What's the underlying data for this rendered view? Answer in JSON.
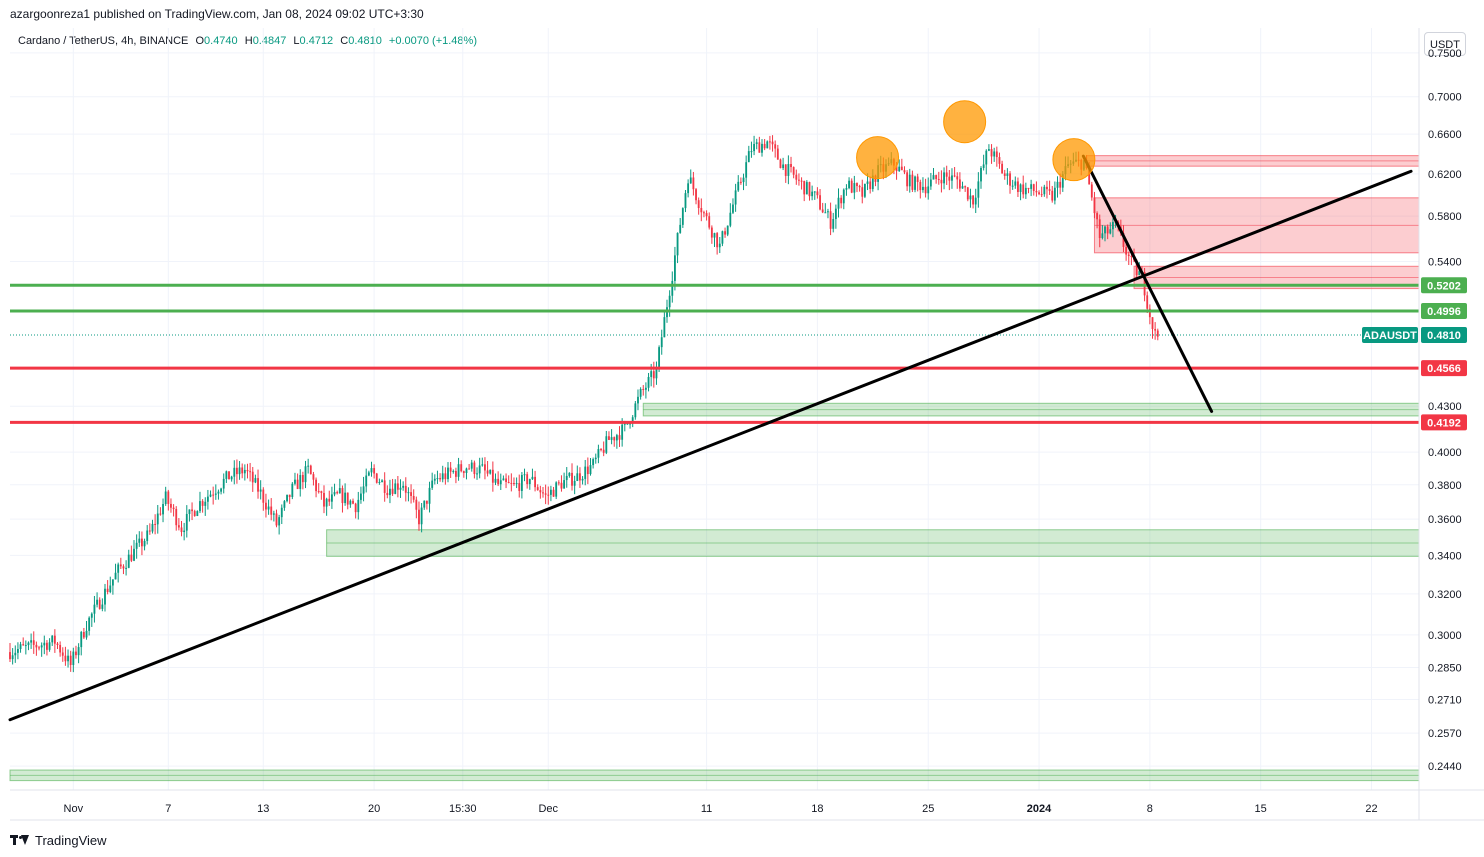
{
  "header": {
    "published": "azargoonreza1 published on TradingView.com, Jan 08, 2024 09:02 UTC+3:30",
    "symbol_line": "Cardano / TetherUS, 4h, BINANCE",
    "open_label": "O",
    "open": "0.4740",
    "high_label": "H",
    "high": "0.4847",
    "low_label": "L",
    "low": "0.4712",
    "close_label": "C",
    "close": "0.4810",
    "change": "+0.0070 (+1.48%)"
  },
  "currency_button": "USDT",
  "footer": {
    "brand": "TradingView"
  },
  "colors": {
    "up": "#089981",
    "down": "#f23645",
    "green_level": "#4caf50",
    "red_level": "#f23645",
    "green_zone": "#4caf50",
    "red_zone": "#f23645",
    "marker": "#ff9800",
    "trend": "#000000"
  },
  "chart_data": {
    "type": "candlestick",
    "title": "Cardano / TetherUS, 4h, BINANCE",
    "scale": "log",
    "ylim": [
      0.235,
      0.78
    ],
    "x_ticks": [
      "Nov",
      "7",
      "13",
      "20",
      "15:30",
      "Dec",
      "11",
      "18",
      "25",
      "2024",
      "8",
      "15",
      "22"
    ],
    "x_tick_days": [
      0,
      6,
      12,
      19,
      24.6,
      30,
      40,
      47,
      54,
      61,
      68,
      75,
      82
    ],
    "x_range_days": [
      -4,
      85
    ],
    "y_ticks": [
      "0.7500",
      "0.7000",
      "0.6600",
      "0.6200",
      "0.5800",
      "0.5400",
      "0.4300",
      "0.4000",
      "0.3800",
      "0.3600",
      "0.3400",
      "0.3200",
      "0.3000",
      "0.2850",
      "0.2710",
      "0.2570",
      "0.2440"
    ],
    "y_tick_values": [
      0.75,
      0.7,
      0.66,
      0.62,
      0.58,
      0.54,
      0.43,
      0.4,
      0.38,
      0.36,
      0.34,
      0.32,
      0.3,
      0.285,
      0.271,
      0.257,
      0.244
    ],
    "price_path": [
      [
        -4,
        0.292
      ],
      [
        -1,
        0.297
      ],
      [
        0,
        0.286
      ],
      [
        1,
        0.305
      ],
      [
        3,
        0.332
      ],
      [
        5,
        0.352
      ],
      [
        6,
        0.372
      ],
      [
        7,
        0.355
      ],
      [
        8,
        0.368
      ],
      [
        10,
        0.385
      ],
      [
        11,
        0.389
      ],
      [
        12,
        0.375
      ],
      [
        13,
        0.357
      ],
      [
        14,
        0.377
      ],
      [
        15,
        0.389
      ],
      [
        16,
        0.368
      ],
      [
        17,
        0.374
      ],
      [
        18,
        0.368
      ],
      [
        19,
        0.388
      ],
      [
        20,
        0.378
      ],
      [
        21,
        0.381
      ],
      [
        22,
        0.36
      ],
      [
        23,
        0.383
      ],
      [
        24,
        0.387
      ],
      [
        25,
        0.391
      ],
      [
        26,
        0.389
      ],
      [
        27,
        0.38
      ],
      [
        28,
        0.379
      ],
      [
        29,
        0.384
      ],
      [
        30,
        0.373
      ],
      [
        31,
        0.381
      ],
      [
        32,
        0.385
      ],
      [
        33,
        0.392
      ],
      [
        34,
        0.408
      ],
      [
        35,
        0.415
      ],
      [
        36,
        0.438
      ],
      [
        37,
        0.455
      ],
      [
        38,
        0.53
      ],
      [
        39,
        0.618
      ],
      [
        40,
        0.582
      ],
      [
        41,
        0.553
      ],
      [
        42,
        0.598
      ],
      [
        43,
        0.645
      ],
      [
        44,
        0.652
      ],
      [
        45,
        0.628
      ],
      [
        46,
        0.612
      ],
      [
        47,
        0.598
      ],
      [
        48,
        0.575
      ],
      [
        49,
        0.61
      ],
      [
        50,
        0.6
      ],
      [
        51,
        0.622
      ],
      [
        52,
        0.63
      ],
      [
        53,
        0.612
      ],
      [
        54,
        0.608
      ],
      [
        55,
        0.618
      ],
      [
        56,
        0.614
      ],
      [
        57,
        0.595
      ],
      [
        58,
        0.646
      ],
      [
        59,
        0.618
      ],
      [
        60,
        0.606
      ],
      [
        61,
        0.603
      ],
      [
        62,
        0.598
      ],
      [
        63,
        0.628
      ],
      [
        64,
        0.632
      ],
      [
        65,
        0.561
      ],
      [
        66,
        0.571
      ],
      [
        67,
        0.538
      ],
      [
        67.7,
        0.526
      ],
      [
        68.2,
        0.495
      ],
      [
        68.5,
        0.481
      ]
    ],
    "horizontal_levels": [
      {
        "price": 0.5202,
        "label": "0.5202",
        "color": "green"
      },
      {
        "price": 0.4996,
        "label": "0.4996",
        "color": "green"
      },
      {
        "price": 0.4566,
        "label": "0.4566",
        "color": "red"
      },
      {
        "price": 0.4192,
        "label": "0.4192",
        "color": "red"
      }
    ],
    "current_price": {
      "symbol": "ADAUSDT",
      "price": 0.481,
      "label": "0.4810"
    },
    "zones": [
      {
        "color": "green",
        "top": 0.432,
        "bottom": 0.4235,
        "start_day": 36
      },
      {
        "color": "green",
        "top": 0.354,
        "bottom": 0.3395,
        "start_day": 16
      },
      {
        "color": "green",
        "top": 0.2425,
        "bottom": 0.2385,
        "start_day": -4
      },
      {
        "color": "red",
        "top": 0.638,
        "bottom": 0.6275,
        "start_day": 64
      },
      {
        "color": "red",
        "top": 0.597,
        "bottom": 0.5475,
        "start_day": 64.5
      },
      {
        "color": "red",
        "top": 0.536,
        "bottom": 0.5175,
        "start_day": 67
      }
    ],
    "trendlines": [
      {
        "name": "rising-support",
        "from": [
          -4,
          0.2625
        ],
        "to": [
          84.5,
          0.6225
        ]
      },
      {
        "name": "falling-resistance",
        "from": [
          63.8,
          0.6375
        ],
        "to": [
          71.9,
          0.4265
        ]
      }
    ],
    "peak_markers": [
      {
        "day": 50.8,
        "price": 0.636
      },
      {
        "day": 56.3,
        "price": 0.673
      },
      {
        "day": 63.2,
        "price": 0.634
      }
    ]
  }
}
